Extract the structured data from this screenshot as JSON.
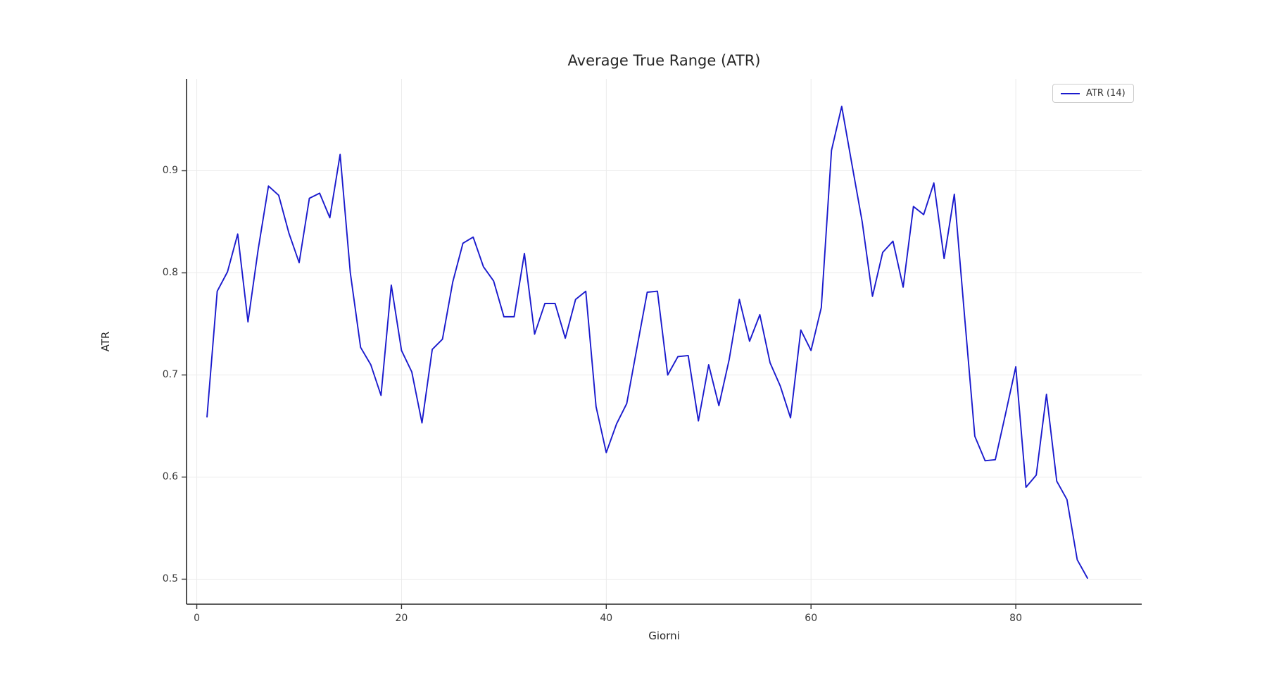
{
  "chart_data": {
    "type": "line",
    "title": "Average True Range (ATR)",
    "xlabel": "Giorni",
    "ylabel": "ATR",
    "legend_label": "ATR (14)",
    "legend_position": "upper right",
    "grid": true,
    "xticks": [
      0,
      20,
      40,
      60,
      80
    ],
    "yticks": [
      0.5,
      0.6,
      0.7,
      0.8,
      0.9
    ],
    "xlim": [
      -1,
      92.3
    ],
    "ylim": [
      0.4755,
      0.99
    ],
    "x_start": 1,
    "series": [
      {
        "name": "ATR (14)",
        "values": [
          0.659,
          0.782,
          0.801,
          0.838,
          0.752,
          0.823,
          0.885,
          0.876,
          0.839,
          0.81,
          0.873,
          0.878,
          0.854,
          0.916,
          0.8,
          0.727,
          0.71,
          0.68,
          0.788,
          0.724,
          0.703,
          0.653,
          0.725,
          0.735,
          0.791,
          0.829,
          0.835,
          0.806,
          0.792,
          0.757,
          0.757,
          0.819,
          0.74,
          0.77,
          0.77,
          0.736,
          0.774,
          0.782,
          0.669,
          0.624,
          0.652,
          0.672,
          0.727,
          0.781,
          0.782,
          0.7,
          0.718,
          0.719,
          0.655,
          0.71,
          0.67,
          0.715,
          0.774,
          0.733,
          0.759,
          0.712,
          0.689,
          0.658,
          0.744,
          0.724,
          0.766,
          0.92,
          0.963,
          0.906,
          0.85,
          0.777,
          0.82,
          0.831,
          0.786,
          0.865,
          0.857,
          0.888,
          0.814,
          0.877,
          0.757,
          0.64,
          0.616,
          0.617,
          0.662,
          0.708,
          0.59,
          0.602,
          0.681,
          0.596,
          0.578,
          0.519,
          0.501
        ]
      }
    ],
    "colors": {
      "line": "#1a1acd",
      "grid": "#ebebeb",
      "spine": "#262626",
      "tick": "#333333",
      "text": "#262626",
      "background": "#ffffff"
    }
  }
}
